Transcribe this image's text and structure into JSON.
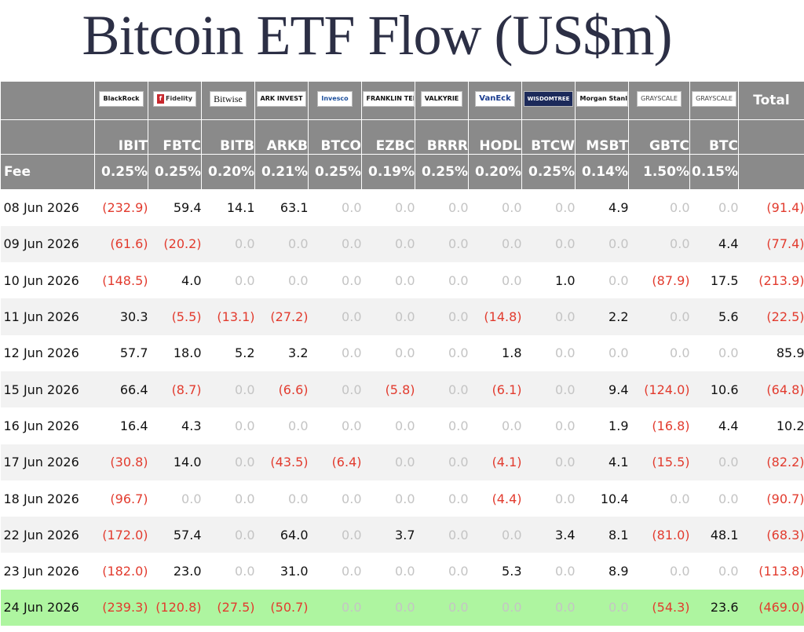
{
  "title": "Bitcoin ETF Flow (US$m)",
  "issuers": [
    {
      "logo": "BlackRock",
      "ticker": "IBIT",
      "fee": "0.25%"
    },
    {
      "logo": "Fidelity",
      "ticker": "FBTC",
      "fee": "0.25%"
    },
    {
      "logo": "Bitwise",
      "ticker": "BITB",
      "fee": "0.20%"
    },
    {
      "logo": "ARK INVEST",
      "ticker": "ARKB",
      "fee": "0.21%"
    },
    {
      "logo": "Invesco",
      "ticker": "BTCO",
      "fee": "0.25%"
    },
    {
      "logo": "FRANKLIN TEMPLETON",
      "ticker": "EZBC",
      "fee": "0.19%"
    },
    {
      "logo": "VALKYRIE",
      "ticker": "BRRR",
      "fee": "0.25%"
    },
    {
      "logo": "VanEck",
      "ticker": "HODL",
      "fee": "0.20%"
    },
    {
      "logo": "WISDOMTREE",
      "ticker": "BTCW",
      "fee": "0.25%"
    },
    {
      "logo": "Morgan Stanley",
      "ticker": "MSBT",
      "fee": "0.14%"
    },
    {
      "logo": "GRAYSCALE",
      "ticker": "GBTC",
      "fee": "1.50%"
    },
    {
      "logo": "GRAYSCALE",
      "ticker": "BTC",
      "fee": "0.15%"
    }
  ],
  "total_label": "Total",
  "fee_label": "Fee",
  "rows": [
    {
      "date": "08 Jun 2026",
      "values": [
        "(232.9)",
        "59.4",
        "14.1",
        "63.1",
        "0.0",
        "0.0",
        "0.0",
        "0.0",
        "0.0",
        "4.9",
        "0.0",
        "0.0"
      ],
      "total": "(91.4)"
    },
    {
      "date": "09 Jun 2026",
      "values": [
        "(61.6)",
        "(20.2)",
        "0.0",
        "0.0",
        "0.0",
        "0.0",
        "0.0",
        "0.0",
        "0.0",
        "0.0",
        "0.0",
        "4.4"
      ],
      "total": "(77.4)"
    },
    {
      "date": "10 Jun 2026",
      "values": [
        "(148.5)",
        "4.0",
        "0.0",
        "0.0",
        "0.0",
        "0.0",
        "0.0",
        "0.0",
        "1.0",
        "0.0",
        "(87.9)",
        "17.5"
      ],
      "total": "(213.9)"
    },
    {
      "date": "11 Jun 2026",
      "values": [
        "30.3",
        "(5.5)",
        "(13.1)",
        "(27.2)",
        "0.0",
        "0.0",
        "0.0",
        "(14.8)",
        "0.0",
        "2.2",
        "0.0",
        "5.6"
      ],
      "total": "(22.5)"
    },
    {
      "date": "12 Jun 2026",
      "values": [
        "57.7",
        "18.0",
        "5.2",
        "3.2",
        "0.0",
        "0.0",
        "0.0",
        "1.8",
        "0.0",
        "0.0",
        "0.0",
        "0.0"
      ],
      "total": "85.9"
    },
    {
      "date": "15 Jun 2026",
      "values": [
        "66.4",
        "(8.7)",
        "0.0",
        "(6.6)",
        "0.0",
        "(5.8)",
        "0.0",
        "(6.1)",
        "0.0",
        "9.4",
        "(124.0)",
        "10.6"
      ],
      "total": "(64.8)"
    },
    {
      "date": "16 Jun 2026",
      "values": [
        "16.4",
        "4.3",
        "0.0",
        "0.0",
        "0.0",
        "0.0",
        "0.0",
        "0.0",
        "0.0",
        "1.9",
        "(16.8)",
        "4.4"
      ],
      "total": "10.2"
    },
    {
      "date": "17 Jun 2026",
      "values": [
        "(30.8)",
        "14.0",
        "0.0",
        "(43.5)",
        "(6.4)",
        "0.0",
        "0.0",
        "(4.1)",
        "0.0",
        "4.1",
        "(15.5)",
        "0.0"
      ],
      "total": "(82.2)"
    },
    {
      "date": "18 Jun 2026",
      "values": [
        "(96.7)",
        "0.0",
        "0.0",
        "0.0",
        "0.0",
        "0.0",
        "0.0",
        "(4.4)",
        "0.0",
        "10.4",
        "0.0",
        "0.0"
      ],
      "total": "(90.7)"
    },
    {
      "date": "22 Jun 2026",
      "values": [
        "(172.0)",
        "57.4",
        "0.0",
        "64.0",
        "0.0",
        "3.7",
        "0.0",
        "0.0",
        "3.4",
        "8.1",
        "(81.0)",
        "48.1"
      ],
      "total": "(68.3)"
    },
    {
      "date": "23 Jun 2026",
      "values": [
        "(182.0)",
        "23.0",
        "0.0",
        "31.0",
        "0.0",
        "0.0",
        "0.0",
        "5.3",
        "0.0",
        "8.9",
        "0.0",
        "0.0"
      ],
      "total": "(113.8)"
    },
    {
      "date": "24 Jun 2026",
      "values": [
        "(239.3)",
        "(120.8)",
        "(27.5)",
        "(50.7)",
        "0.0",
        "0.0",
        "0.0",
        "0.0",
        "0.0",
        "0.0",
        "(54.3)",
        "23.6"
      ],
      "total": "(469.0)",
      "highlight": true
    }
  ],
  "colors": {
    "header_bg": "#8a8a8a",
    "negative": "#e23b2e",
    "zero": "#c4c4c4",
    "highlight": "#aef5a0",
    "stripe": "#f2f2f2"
  }
}
